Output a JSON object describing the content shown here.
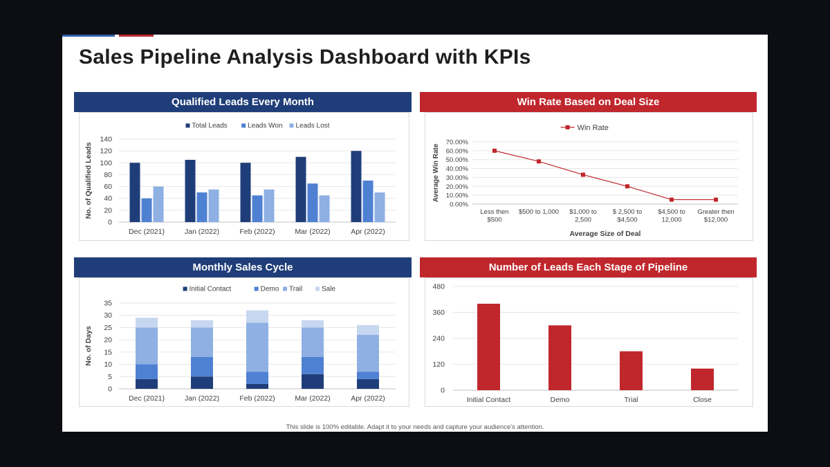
{
  "title": "Sales Pipeline Analysis Dashboard with KPIs",
  "footer": "This slide is 100% editable. Adapt it to your needs and capture your audience's attention.",
  "colors": {
    "navy": "#1f3e79",
    "red": "#c0272d",
    "accent_blue": "#2f5ea8",
    "accent_red": "#c0272d"
  },
  "panels": {
    "qualified_leads": {
      "header": "Qualified Leads Every Month"
    },
    "win_rate": {
      "header": "Win Rate Based on Deal Size"
    },
    "sales_cycle": {
      "header": "Monthly Sales Cycle"
    },
    "pipeline": {
      "header": "Number of Leads Each Stage of Pipeline"
    }
  },
  "chart_data": [
    {
      "type": "bar",
      "categories": [
        "Dec (2021)",
        "Jan (2022)",
        "Feb (2022)",
        "Mar (2022)",
        "Apr (2022)"
      ],
      "series": [
        {
          "name": "Total Leads",
          "values": [
            100,
            105,
            100,
            110,
            120
          ],
          "color": "#1f3e79"
        },
        {
          "name": "Leads Won",
          "values": [
            40,
            50,
            45,
            65,
            70
          ],
          "color": "#4f81d3"
        },
        {
          "name": "Leads Lost",
          "values": [
            60,
            55,
            55,
            45,
            50
          ],
          "color": "#8eb0e3"
        }
      ],
      "ylabel": "No. of Qualified Leads",
      "ylim": [
        0,
        140
      ],
      "yticks": [
        "0",
        "20",
        "40",
        "60",
        "80",
        "100",
        "120",
        "140"
      ],
      "legend": "top",
      "grid": true
    },
    {
      "type": "line",
      "categories": [
        [
          "Less then",
          "$500"
        ],
        [
          "$500 to 1,000"
        ],
        [
          "$1,000 to",
          "2,500"
        ],
        [
          "$ 2,500 to",
          "$4,500"
        ],
        [
          "$4,500 to",
          "12,000"
        ],
        [
          "Greater then",
          "$12,000"
        ]
      ],
      "series": [
        {
          "name": "Win Rate",
          "values": [
            60,
            48,
            33,
            20,
            5,
            5
          ],
          "color": "#c0272d"
        }
      ],
      "xlabel": "Average Size of Deal",
      "ylabel": "Average Win Rate",
      "ylim": [
        0,
        70
      ],
      "yticks": [
        "0.00%",
        "10.00%",
        "20.00%",
        "30.00%",
        "40.00%",
        "50.00%",
        "60.00%",
        "70.00%"
      ],
      "legend": "top",
      "grid": true
    },
    {
      "type": "bar",
      "stacked": true,
      "categories": [
        "Dec (2021)",
        "Jan (2022)",
        "Feb (2022)",
        "Mar (2022)",
        "Apr (2022)"
      ],
      "series": [
        {
          "name": "Initial Contact",
          "values": [
            4,
            5,
            2,
            6,
            4
          ],
          "color": "#1f3e79"
        },
        {
          "name": "Demo",
          "values": [
            6,
            8,
            5,
            7,
            3
          ],
          "color": "#4f81d3"
        },
        {
          "name": "Trail",
          "values": [
            15,
            12,
            20,
            12,
            15
          ],
          "color": "#8eb0e3"
        },
        {
          "name": "Sale",
          "values": [
            4,
            3,
            5,
            3,
            4
          ],
          "color": "#c7d7f0"
        }
      ],
      "ylabel": "No. of Days",
      "ylim": [
        0,
        35
      ],
      "yticks": [
        "0",
        "5",
        "10",
        "15",
        "20",
        "25",
        "30",
        "35"
      ],
      "legend": "top",
      "grid": true
    },
    {
      "type": "bar",
      "categories": [
        "Initial Contact",
        "Demo",
        "Trial",
        "Close"
      ],
      "series": [
        {
          "values": [
            400,
            300,
            180,
            100
          ],
          "color": "#c0272d"
        }
      ],
      "ylim": [
        0,
        480
      ],
      "yticks": [
        "0",
        "120",
        "240",
        "360",
        "480"
      ],
      "grid": true
    }
  ]
}
